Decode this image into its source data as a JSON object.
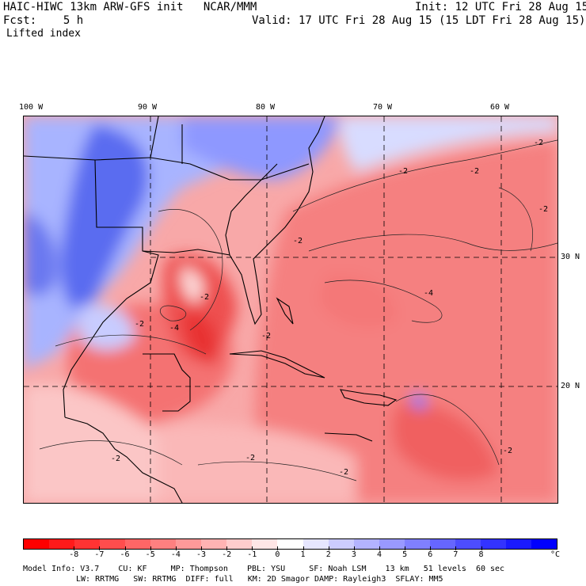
{
  "header": {
    "left_line1": "HAIC-HIWC 13km ARW-GFS init   NCAR/MMM",
    "left_line2": "Fcst:    5 h",
    "field_name": "Lifted index",
    "init": "Init: 12 UTC Fri 28 Aug 15",
    "valid": "Valid: 17 UTC Fri 28 Aug 15 (15 LDT Fri 28 Aug 15)"
  },
  "map": {
    "lon_labels": [
      "100 W",
      "90 W",
      "80 W",
      "70 W",
      "60 W"
    ],
    "lat_labels": [
      "30 N",
      "20 N"
    ],
    "contour_labels": [
      "-2",
      "-2",
      "-2",
      "-2",
      "-4",
      "-2",
      "-2",
      "-4",
      "-2",
      "-2",
      "-2",
      "-2",
      "-2",
      "-2"
    ]
  },
  "colorbar": {
    "colors": [
      "#ff0000",
      "#ff1a1a",
      "#ff3333",
      "#ff4d4d",
      "#ff6666",
      "#ff8080",
      "#ff9999",
      "#ffb3b3",
      "#ffcccc",
      "#ffe6e6",
      "#ffffff",
      "#e6e6ff",
      "#ccccff",
      "#b3b3ff",
      "#9999ff",
      "#8080ff",
      "#6666ff",
      "#4d4dff",
      "#3333ff",
      "#1a1aff",
      "#0000ff"
    ],
    "ticks": [
      "-8",
      "-7",
      "-6",
      "-5",
      "-4",
      "-3",
      "-2",
      "-1",
      "0",
      "1",
      "2",
      "3",
      "4",
      "5",
      "6",
      "7",
      "8"
    ],
    "unit": "°C"
  },
  "footer": {
    "line1": "Model Info: V3.7    CU: KF     MP: Thompson    PBL: YSU     SF: Noah LSM    13 km   51 levels  60 sec",
    "line2": "LW: RRTMG   SW: RRTMG  DIFF: full   KM: 2D Smagor DAMP: Rayleigh3  SFLAY: MM5"
  }
}
